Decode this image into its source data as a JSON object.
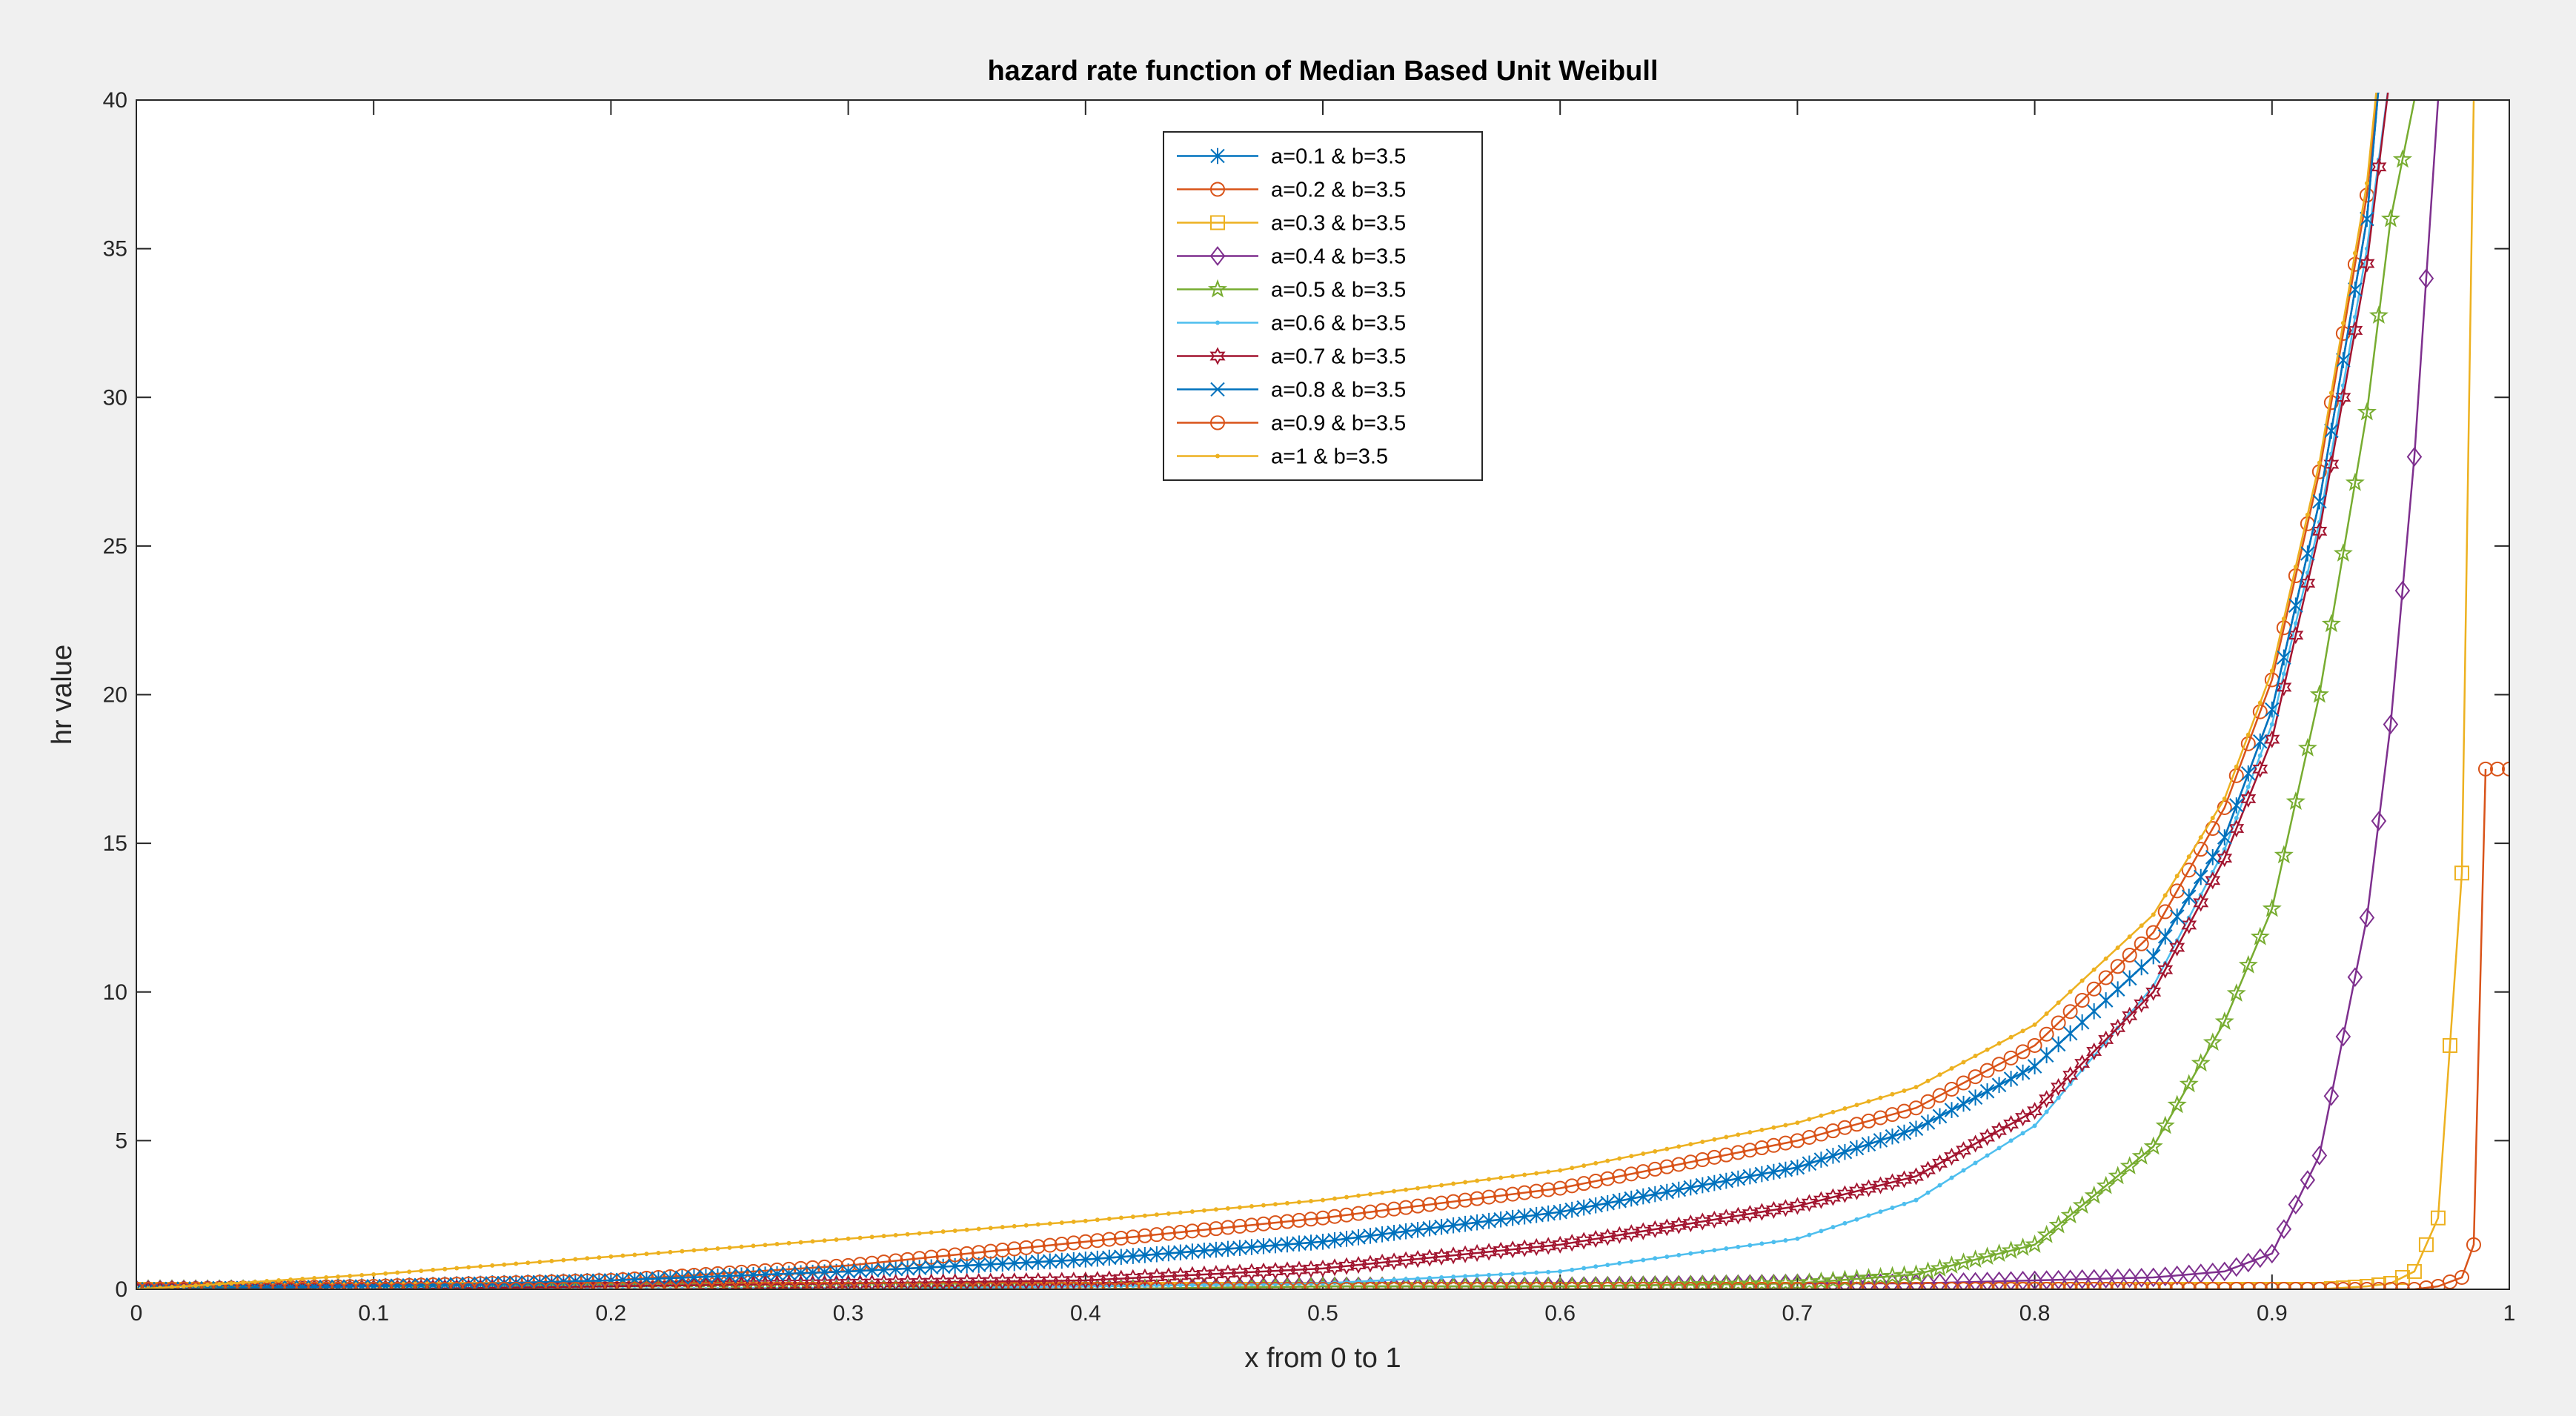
{
  "chart_data": {
    "type": "line",
    "title": "hazard rate function of Median Based  Unit  Weibull",
    "xlabel": "x from 0 to 1",
    "ylabel": "hr value",
    "xlim": [
      0,
      1
    ],
    "ylim": [
      0,
      40
    ],
    "xticks": [
      "0",
      "0.1",
      "0.2",
      "0.3",
      "0.4",
      "0.5",
      "0.6",
      "0.7",
      "0.8",
      "0.9",
      "1"
    ],
    "yticks": [
      "0",
      "5",
      "10",
      "15",
      "20",
      "25",
      "30",
      "35",
      "40"
    ],
    "grid": false,
    "legend_position": "top-center",
    "x": [
      0,
      0.1,
      0.2,
      0.3,
      0.4,
      0.5,
      0.6,
      0.7,
      0.75,
      0.8,
      0.85,
      0.88,
      0.9,
      0.92,
      0.94,
      0.95,
      0.96,
      0.97,
      0.98,
      0.985,
      0.99
    ],
    "series": [
      {
        "name": "a=0.1   &  b=3.5",
        "color": "#0072BD",
        "marker": "asterisk",
        "values": [
          0,
          0.1,
          0.3,
          0.6,
          1.0,
          1.6,
          2.6,
          4.1,
          5.4,
          7.5,
          11.2,
          15.2,
          19.5,
          26.5,
          36.0,
          45.0,
          null,
          null,
          null,
          null,
          null
        ]
      },
      {
        "name": "a=0.2  &  b=3.5",
        "color": "#D95319",
        "marker": "circle",
        "values": [
          0,
          0.1,
          0.3,
          0.8,
          1.6,
          2.4,
          3.4,
          5.0,
          6.1,
          8.2,
          12.0,
          16.2,
          20.5,
          27.5,
          36.8,
          45.0,
          null,
          null,
          null,
          null,
          null
        ]
      },
      {
        "name": "a=0.3  &  b=3.5",
        "color": "#EDB120",
        "marker": "square",
        "values": [
          0,
          0,
          0,
          0,
          0,
          0,
          0,
          0,
          0,
          0,
          0,
          0,
          0,
          0,
          0.1,
          0.2,
          0.6,
          2.4,
          14.0,
          40.0,
          null
        ]
      },
      {
        "name": "a=0.4   &  b=3.5",
        "color": "#7E2F8E",
        "marker": "diamond",
        "values": [
          0,
          0,
          0,
          0,
          0,
          0.1,
          0.1,
          0.2,
          0.2,
          0.3,
          0.4,
          0.6,
          1.2,
          4.5,
          12.5,
          19.0,
          28.0,
          40.0,
          null,
          null,
          null
        ]
      },
      {
        "name": "a=0.5  &  b=3.5",
        "color": "#77AC30",
        "marker": "pentagram",
        "values": [
          0,
          0,
          0,
          0,
          0,
          0.1,
          0.1,
          0.2,
          0.5,
          1.5,
          4.8,
          9.0,
          12.8,
          20.0,
          29.5,
          36.0,
          40.0,
          null,
          null,
          null,
          null
        ]
      },
      {
        "name": "a=0.6  &  b=3.5",
        "color": "#4DBEEE",
        "marker": "point",
        "values": [
          0,
          0,
          0,
          0,
          0.1,
          0.2,
          0.6,
          1.7,
          3.0,
          5.5,
          10.2,
          14.8,
          19.0,
          25.8,
          35.0,
          41.0,
          null,
          null,
          null,
          null,
          null
        ]
      },
      {
        "name": "a=0.7  &  b=3.5",
        "color": "#A2142F",
        "marker": "hexagram",
        "values": [
          0,
          0,
          0.1,
          0.2,
          0.3,
          0.7,
          1.5,
          2.8,
          3.8,
          6.0,
          10.0,
          14.5,
          18.5,
          25.5,
          34.5,
          41.0,
          null,
          null,
          null,
          null,
          null
        ]
      },
      {
        "name": "a=0.8   &  b=3.5",
        "color": "#0072BD",
        "marker": "x",
        "values": [
          0,
          0.1,
          0.3,
          0.6,
          1.0,
          1.6,
          2.6,
          4.1,
          5.4,
          7.5,
          11.2,
          15.2,
          19.5,
          26.5,
          36.0,
          45.0,
          null,
          null,
          null,
          null,
          null
        ]
      },
      {
        "name": "a=0.9   &  b=3.5",
        "color": "#D95319",
        "marker": "circle",
        "values": [
          0,
          0,
          0,
          0,
          0,
          0,
          0,
          0,
          0,
          0,
          0,
          0,
          0,
          0,
          0,
          0,
          0,
          0.1,
          0.4,
          1.5,
          17.5
        ]
      },
      {
        "name": "a=1 & b=3.5",
        "color": "#EDB120",
        "marker": "point",
        "values": [
          0,
          0.5,
          1.1,
          1.7,
          2.3,
          3.0,
          4.0,
          5.6,
          6.8,
          8.9,
          12.6,
          16.5,
          20.8,
          27.8,
          37.2,
          45.0,
          null,
          null,
          null,
          null,
          null
        ]
      }
    ]
  }
}
